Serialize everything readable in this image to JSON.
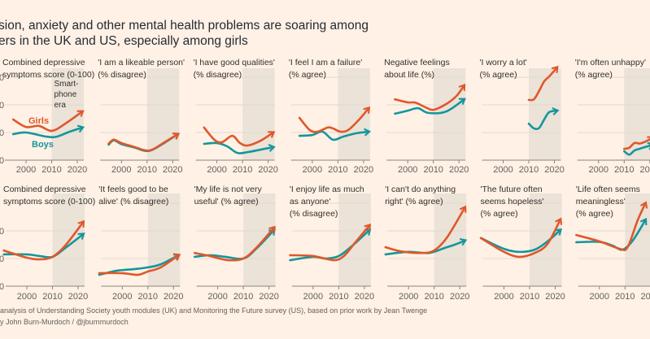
{
  "title_lines": [
    "sion, anxiety and other mental health problems are soaring among",
    "ers in the UK and US, especially among girls"
  ],
  "footer_lines": [
    "analysis of Understanding Society youth modules (UK) and Monitoring the Future survey (US), based on prior work by Jean Twenge",
    "y John Burn-Murdoch / @jburnmurdoch"
  ],
  "colors": {
    "girls": "#e0572a",
    "boys": "#14969b",
    "background": "#fff1e5",
    "smartphone_shade": "#ebe2d8",
    "grid": "#e3d9ce"
  },
  "chart_data": {
    "type": "line",
    "note_label": [
      "Smart-",
      "phone",
      "era"
    ],
    "series_labels": {
      "girls": "Girls",
      "boys": "Boys"
    },
    "shaded_period": [
      2010,
      2022
    ],
    "xticks": [
      2000,
      2010,
      2020
    ],
    "ytick_fragments": [
      "0",
      "0",
      "0",
      "0"
    ],
    "rows": [
      {
        "panels": [
          {
            "title": [
              "Combined depressive",
              "symptoms score (0-100)"
            ],
            "girls": [
              [
                1995,
                1.47
              ],
              [
                2000,
                1.2
              ],
              [
                2005,
                1.24
              ],
              [
                2010,
                1.06
              ],
              [
                2015,
                1.3
              ],
              [
                2022,
                1.76
              ]
            ],
            "boys": [
              [
                1995,
                0.94
              ],
              [
                2000,
                1.0
              ],
              [
                2008,
                0.85
              ],
              [
                2012,
                0.85
              ],
              [
                2017,
                1.03
              ],
              [
                2022,
                1.18
              ]
            ]
          },
          {
            "title": [
              "'I am a likeable person'",
              "(% disagree)"
            ],
            "girls": [
              [
                1995,
                0.6
              ],
              [
                1997,
                0.74
              ],
              [
                2000,
                0.62
              ],
              [
                2005,
                0.48
              ],
              [
                2009,
                0.36
              ],
              [
                2012,
                0.38
              ],
              [
                2017,
                0.66
              ],
              [
                2022,
                0.94
              ]
            ],
            "boys": [
              [
                1995,
                0.56
              ],
              [
                1997,
                0.72
              ],
              [
                2000,
                0.58
              ],
              [
                2005,
                0.46
              ],
              [
                2009,
                0.34
              ],
              [
                2012,
                0.37
              ],
              [
                2017,
                0.64
              ],
              [
                2022,
                0.94
              ]
            ]
          },
          {
            "title": [
              "'I have good qualities'",
              "(% disagree)"
            ],
            "girls": [
              [
                1995,
                1.18
              ],
              [
                1999,
                0.74
              ],
              [
                2002,
                0.65
              ],
              [
                2006,
                0.88
              ],
              [
                2009,
                0.62
              ],
              [
                2012,
                0.53
              ],
              [
                2017,
                0.7
              ],
              [
                2022,
                1.0
              ]
            ],
            "boys": [
              [
                1995,
                0.59
              ],
              [
                2000,
                0.62
              ],
              [
                2004,
                0.5
              ],
              [
                2008,
                0.26
              ],
              [
                2012,
                0.29
              ],
              [
                2017,
                0.38
              ],
              [
                2022,
                0.47
              ]
            ]
          },
          {
            "title": [
              "'I feel I am a failure'",
              "(% agree)"
            ],
            "girls": [
              [
                1995,
                1.53
              ],
              [
                1999,
                1.09
              ],
              [
                2002,
                1.03
              ],
              [
                2006,
                1.18
              ],
              [
                2008,
                1.15
              ],
              [
                2011,
                1.03
              ],
              [
                2014,
                1.09
              ],
              [
                2018,
                1.44
              ],
              [
                2022,
                1.88
              ]
            ],
            "boys": [
              [
                1995,
                0.88
              ],
              [
                2000,
                0.91
              ],
              [
                2004,
                1.03
              ],
              [
                2008,
                0.74
              ],
              [
                2012,
                0.85
              ],
              [
                2017,
                0.97
              ],
              [
                2022,
                1.03
              ]
            ]
          },
          {
            "title": [
              "Negative feelings",
              "about life (%)"
            ],
            "girls": [
              [
                1995,
                2.2
              ],
              [
                2000,
                2.09
              ],
              [
                2003,
                2.08
              ],
              [
                2007,
                1.91
              ],
              [
                2010,
                1.82
              ],
              [
                2015,
                2.03
              ],
              [
                2019,
                2.32
              ],
              [
                2022,
                2.7
              ]
            ],
            "boys": [
              [
                1995,
                1.68
              ],
              [
                2000,
                1.79
              ],
              [
                2004,
                1.88
              ],
              [
                2008,
                1.71
              ],
              [
                2015,
                1.76
              ],
              [
                2022,
                2.2
              ]
            ]
          },
          {
            "title": [
              "'I worry a lot'",
              "(% agree)"
            ],
            "girls": [
              [
                2010,
                2.18
              ],
              [
                2012,
                2.2
              ],
              [
                2014,
                2.5
              ],
              [
                2016,
                2.85
              ],
              [
                2018,
                3.03
              ],
              [
                2021,
                3.35
              ]
            ],
            "boys": [
              [
                2010,
                1.32
              ],
              [
                2012,
                1.15
              ],
              [
                2014,
                1.16
              ],
              [
                2016,
                1.47
              ],
              [
                2018,
                1.74
              ],
              [
                2021,
                1.79
              ]
            ]
          },
          {
            "title": [
              "'I'm often unhappy'",
              "(% agree)"
            ],
            "girls": [
              [
                2010,
                0.41
              ],
              [
                2012,
                0.45
              ],
              [
                2014,
                0.62
              ],
              [
                2016,
                0.6
              ],
              [
                2018,
                0.66
              ],
              [
                2021,
                0.8
              ]
            ],
            "boys": [
              [
                2010,
                0.32
              ],
              [
                2012,
                0.2
              ],
              [
                2014,
                0.35
              ],
              [
                2016,
                0.41
              ],
              [
                2018,
                0.47
              ],
              [
                2021,
                0.55
              ]
            ]
          }
        ]
      },
      {
        "panels": [
          {
            "title": [
              "Combined depressive",
              "symptoms score (0-100)"
            ],
            "girls": [
              [
                1991,
                1.29
              ],
              [
                2000,
                1.03
              ],
              [
                2005,
                0.97
              ],
              [
                2010,
                1.06
              ],
              [
                2015,
                1.47
              ],
              [
                2022,
                2.32
              ]
            ],
            "boys": [
              [
                1991,
                1.15
              ],
              [
                2000,
                1.15
              ],
              [
                2005,
                1.09
              ],
              [
                2010,
                1.06
              ],
              [
                2015,
                1.38
              ],
              [
                2022,
                1.88
              ]
            ]
          },
          {
            "title": [
              "'It feels good to be",
              "alive' (% disagree)"
            ],
            "girls": [
              [
                1991,
                0.47
              ],
              [
                2000,
                0.47
              ],
              [
                2006,
                0.41
              ],
              [
                2010,
                0.53
              ],
              [
                2015,
                0.68
              ],
              [
                2022,
                1.12
              ]
            ],
            "boys": [
              [
                1991,
                0.41
              ],
              [
                1998,
                0.56
              ],
              [
                2005,
                0.62
              ],
              [
                2010,
                0.68
              ],
              [
                2015,
                0.79
              ],
              [
                2022,
                1.12
              ]
            ]
          },
          {
            "title": [
              "'My life is not very",
              "useful' (% agree)"
            ],
            "girls": [
              [
                1991,
                1.2
              ],
              [
                1997,
                1.09
              ],
              [
                2004,
                0.94
              ],
              [
                2010,
                1.0
              ],
              [
                2015,
                1.38
              ],
              [
                2022,
                2.12
              ]
            ],
            "boys": [
              [
                1991,
                1.06
              ],
              [
                1997,
                1.12
              ],
              [
                2003,
                1.06
              ],
              [
                2010,
                1.0
              ],
              [
                2015,
                1.35
              ],
              [
                2022,
                2.03
              ]
            ]
          },
          {
            "title": [
              "'I enjoy life as much",
              "as anyone'",
              "(% disagree)"
            ],
            "girls": [
              [
                1991,
                1.12
              ],
              [
                2000,
                1.09
              ],
              [
                2008,
                0.94
              ],
              [
                2012,
                1.09
              ],
              [
                2016,
                1.53
              ],
              [
                2022,
                2.2
              ]
            ],
            "boys": [
              [
                1991,
                0.94
              ],
              [
                2000,
                1.06
              ],
              [
                2005,
                1.0
              ],
              [
                2010,
                1.09
              ],
              [
                2015,
                1.44
              ],
              [
                2022,
                2.03
              ]
            ]
          },
          {
            "title": [
              "'I can't do anything",
              "right' (% agree)"
            ],
            "girls": [
              [
                1991,
                1.41
              ],
              [
                1997,
                1.26
              ],
              [
                2005,
                1.2
              ],
              [
                2010,
                1.29
              ],
              [
                2015,
                1.76
              ],
              [
                2022,
                2.85
              ]
            ],
            "boys": [
              [
                1991,
                1.15
              ],
              [
                2000,
                1.24
              ],
              [
                2008,
                1.2
              ],
              [
                2014,
                1.38
              ],
              [
                2018,
                1.5
              ],
              [
                2022,
                1.65
              ]
            ]
          },
          {
            "title": [
              "'The future often",
              "seems hopeless'",
              "(% agree)"
            ],
            "girls": [
              [
                1991,
                1.74
              ],
              [
                2000,
                1.24
              ],
              [
                2006,
                1.06
              ],
              [
                2012,
                1.2
              ],
              [
                2017,
                1.53
              ],
              [
                2022,
                2.41
              ]
            ],
            "boys": [
              [
                1991,
                1.74
              ],
              [
                2000,
                1.35
              ],
              [
                2006,
                1.24
              ],
              [
                2012,
                1.32
              ],
              [
                2017,
                1.62
              ],
              [
                2022,
                2.03
              ]
            ]
          },
          {
            "title": [
              "'Life often seems",
              "meaningless'",
              "(% agree)"
            ],
            "girls": [
              [
                1991,
                1.85
              ],
              [
                2000,
                1.62
              ],
              [
                2008,
                1.35
              ],
              [
                2011,
                1.41
              ],
              [
                2015,
                2.4
              ],
              [
                2018,
                3.0
              ]
            ],
            "boys": [
              [
                1991,
                1.59
              ],
              [
                2000,
                1.6
              ],
              [
                2005,
                1.47
              ],
              [
                2009,
                1.32
              ],
              [
                2013,
                1.65
              ],
              [
                2018,
                2.4
              ]
            ]
          }
        ]
      }
    ],
    "ylim": [
      0,
      3.4
    ],
    "grid": true
  }
}
